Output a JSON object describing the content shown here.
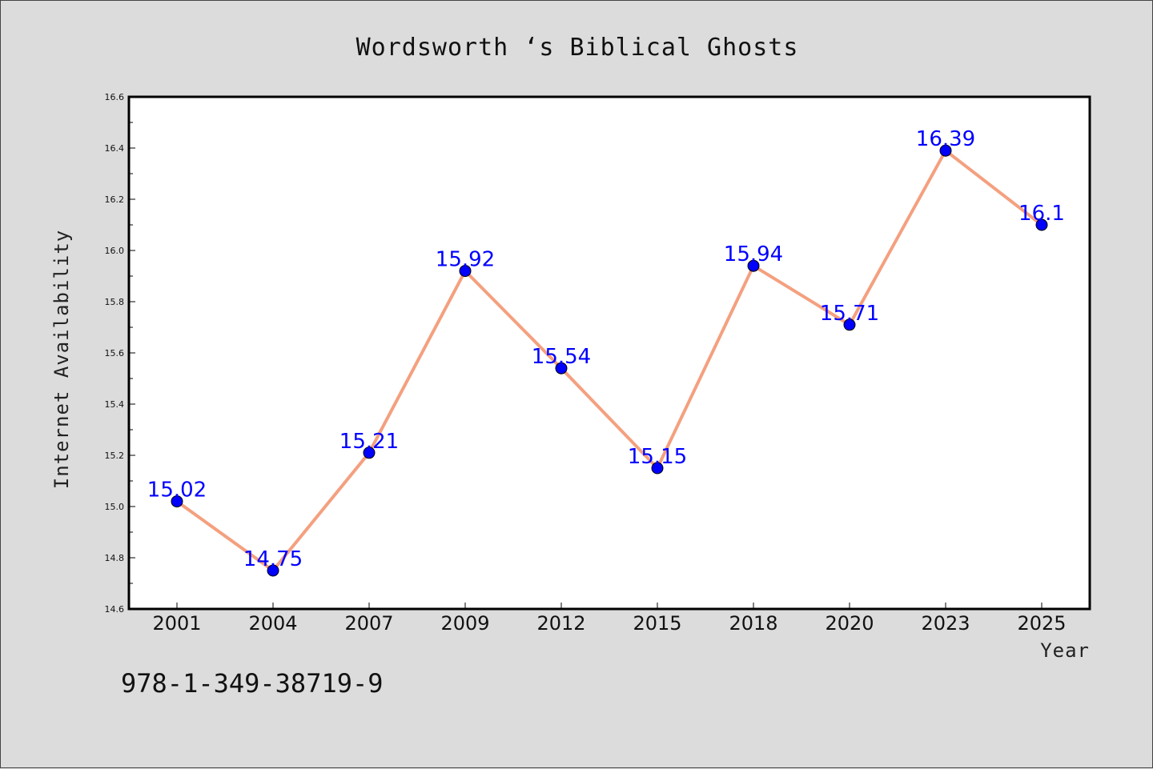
{
  "chart_data": {
    "type": "line",
    "title": "Wordsworth ‘s Biblical Ghosts",
    "xlabel": "Year",
    "ylabel": "Internet Availability",
    "categories": [
      "2001",
      "2004",
      "2007",
      "2009",
      "2012",
      "2015",
      "2018",
      "2020",
      "2023",
      "2025"
    ],
    "series": [
      {
        "values": [
          15.02,
          14.75,
          15.21,
          15.92,
          15.54,
          15.15,
          15.94,
          15.71,
          16.39,
          16.1
        ],
        "data_labels": [
          "15.02",
          "14.75",
          "15.21",
          "15.92",
          "15.54",
          "15.15",
          "15.94",
          "15.71",
          "16.39",
          "16.1"
        ],
        "line_color": "#f4a07f",
        "marker_color": "#0000ff"
      }
    ],
    "ylim": [
      14.6,
      16.6
    ],
    "yticks": [
      "14.6",
      "14.8",
      "15.0",
      "15.2",
      "15.4",
      "15.6",
      "15.8",
      "16.0",
      "16.2",
      "16.4",
      "16.6"
    ],
    "grid": false,
    "legend": "none"
  },
  "footer": {
    "isbn": "978-1-349-38719-9"
  },
  "colors": {
    "background": "#dcdcdc",
    "plot_background": "#ffffff"
  }
}
